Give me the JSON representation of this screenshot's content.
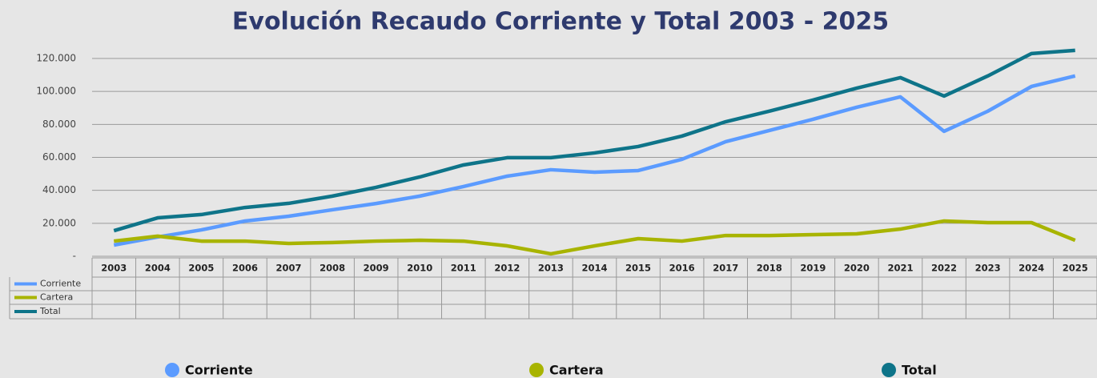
{
  "chart_data": {
    "type": "line",
    "title": "Evolución Recaudo Corriente y Total  2003 - 2025",
    "categories": [
      "2003",
      "2004",
      "2005",
      "2006",
      "2007",
      "2008",
      "2009",
      "2010",
      "2011",
      "2012",
      "2013",
      "2014",
      "2015",
      "2016",
      "2017",
      "2018",
      "2019",
      "2020",
      "2021",
      "2022",
      "2023",
      "2024",
      "2025"
    ],
    "series": [
      {
        "name": "Corriente",
        "color": "#5b9bff",
        "values": [
          6800,
          11700,
          16000,
          21400,
          24300,
          28200,
          32000,
          36500,
          42300,
          48600,
          52500,
          51000,
          52000,
          58800,
          69500,
          76300,
          83100,
          90400,
          96700,
          75800,
          88000,
          103000,
          109400
        ]
      },
      {
        "name": "Cartera",
        "color": "#a8b400",
        "values": [
          9200,
          12200,
          9200,
          9200,
          7800,
          8300,
          9200,
          9700,
          9200,
          6300,
          1500,
          6300,
          10700,
          9200,
          12600,
          12600,
          13100,
          13600,
          16500,
          21400,
          20400,
          20400,
          9700
        ]
      },
      {
        "name": "Total",
        "color": "#0e7489",
        "values": [
          15500,
          23300,
          25300,
          29600,
          32100,
          36500,
          41800,
          48100,
          55400,
          59800,
          59800,
          62700,
          66600,
          72900,
          81600,
          88000,
          94800,
          102000,
          108400,
          97200,
          109400,
          123000,
          124900
        ]
      }
    ],
    "ylim": [
      0,
      120000
    ],
    "yticks": [
      {
        "value": 0,
        "label": "-"
      },
      {
        "value": 20000,
        "label": "20.000"
      },
      {
        "value": 40000,
        "label": "40.000"
      },
      {
        "value": 60000,
        "label": "60.000"
      },
      {
        "value": 80000,
        "label": "80.000"
      },
      {
        "value": 100000,
        "label": "100.000"
      },
      {
        "value": 120000,
        "label": "120.000"
      }
    ],
    "grid": true
  }
}
